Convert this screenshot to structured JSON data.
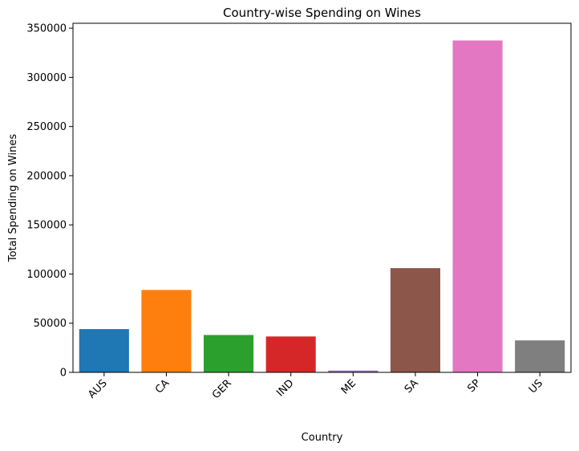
{
  "chart_data": {
    "type": "bar",
    "title": "Country-wise Spending on Wines",
    "xlabel": "Country",
    "ylabel": "Total Spending on Wines",
    "categories": [
      "AUS",
      "CA",
      "GER",
      "IND",
      "ME",
      "SA",
      "SP",
      "US"
    ],
    "values": [
      44000,
      83800,
      38000,
      36500,
      1800,
      106000,
      337500,
      32500
    ],
    "colors": [
      "#1f77b4",
      "#ff7f0e",
      "#2ca02c",
      "#d62728",
      "#9467bd",
      "#8c564b",
      "#e377c2",
      "#7f7f7f"
    ],
    "ylim": [
      0,
      355000
    ],
    "yticks": [
      0,
      50000,
      100000,
      150000,
      200000,
      250000,
      300000,
      350000
    ],
    "grid": false,
    "x_tick_rotation_deg": 45
  }
}
